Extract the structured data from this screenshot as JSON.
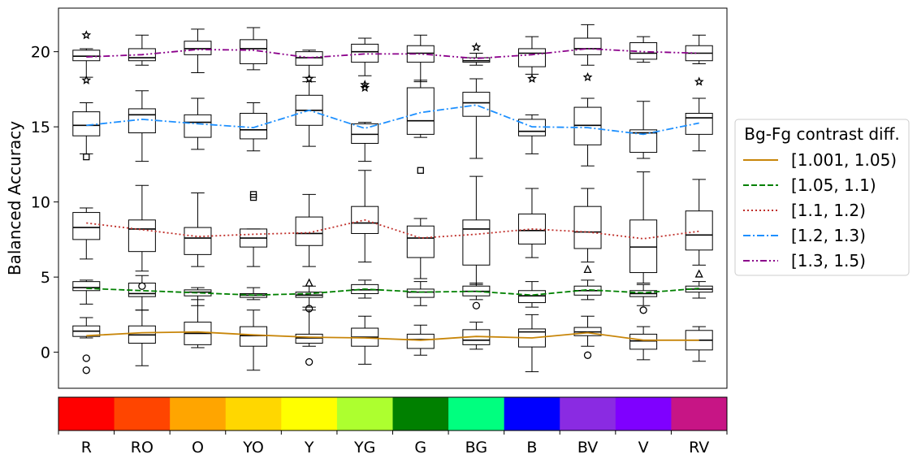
{
  "chart_data": {
    "type": "box",
    "ylabel": "Balanced Accuracy",
    "xlabel": "",
    "ylim": [
      -2.4,
      22.9
    ],
    "yticks": [
      0,
      5,
      10,
      15,
      20
    ],
    "grid": false,
    "categories": [
      "R",
      "RO",
      "O",
      "YO",
      "Y",
      "YG",
      "G",
      "BG",
      "B",
      "BV",
      "V",
      "RV"
    ],
    "category_colors": [
      "#ff0000",
      "#ff4500",
      "#ffa500",
      "#ffd700",
      "#ffff00",
      "#adff2f",
      "#008000",
      "#00ff7f",
      "#0000ff",
      "#8a2be2",
      "#7f00ff",
      "#c71585"
    ],
    "legend": {
      "title": "Bg-Fg contrast diff.",
      "placement": "outside-right"
    },
    "series": [
      {
        "name": "[1.001, 1.05)",
        "color": "#c8860a",
        "dash": "solid",
        "marker": "circle",
        "mean_line": [
          1.1,
          1.3,
          1.35,
          1.15,
          1.0,
          0.95,
          0.8,
          1.05,
          0.95,
          1.3,
          0.8,
          0.8
        ],
        "boxes": [
          {
            "whislo": 0.95,
            "q1": 1.05,
            "med": 1.4,
            "q3": 1.75,
            "whishi": 2.3,
            "fliers": [
              -0.4,
              -1.2
            ]
          },
          {
            "whislo": -0.9,
            "q1": 0.6,
            "med": 1.15,
            "q3": 1.75,
            "whishi": 2.8,
            "fliers": []
          },
          {
            "whislo": 0.3,
            "q1": 0.5,
            "med": 1.25,
            "q3": 2.0,
            "whishi": 3.5,
            "fliers": []
          },
          {
            "whislo": -1.2,
            "q1": 0.4,
            "med": 1.1,
            "q3": 1.7,
            "whishi": 2.8,
            "fliers": []
          },
          {
            "whislo": 0.4,
            "q1": 0.6,
            "med": 0.95,
            "q3": 1.2,
            "whishi": 2.8,
            "fliers": [
              -0.65
            ]
          },
          {
            "whislo": -0.8,
            "q1": 0.4,
            "med": 1.0,
            "q3": 1.6,
            "whishi": 2.4,
            "fliers": []
          },
          {
            "whislo": -0.2,
            "q1": 0.25,
            "med": 0.85,
            "q3": 1.2,
            "whishi": 1.8,
            "fliers": []
          },
          {
            "whislo": 0.2,
            "q1": 0.5,
            "med": 0.8,
            "q3": 1.5,
            "whishi": 2.0,
            "fliers": []
          },
          {
            "whislo": -1.3,
            "q1": 0.35,
            "med": 1.35,
            "q3": 1.55,
            "whishi": 2.5,
            "fliers": []
          },
          {
            "whislo": 0.4,
            "q1": 1.1,
            "med": 1.35,
            "q3": 1.65,
            "whishi": 2.4,
            "fliers": [
              -0.2
            ]
          },
          {
            "whislo": -0.5,
            "q1": 0.2,
            "med": 0.75,
            "q3": 1.2,
            "whishi": 1.7,
            "fliers": []
          },
          {
            "whislo": -0.6,
            "q1": 0.15,
            "med": 0.8,
            "q3": 1.45,
            "whishi": 1.7,
            "fliers": []
          }
        ]
      },
      {
        "name": "[1.05, 1.1)",
        "color": "#008000",
        "dash": "dashed",
        "marker": "circle",
        "mean_line": [
          4.25,
          4.1,
          3.95,
          3.8,
          3.9,
          4.2,
          4.0,
          4.05,
          3.8,
          4.15,
          3.95,
          4.25
        ],
        "boxes": [
          {
            "whislo": 3.2,
            "q1": 4.1,
            "med": 4.3,
            "q3": 4.7,
            "whishi": 4.8,
            "fliers": []
          },
          {
            "whislo": 2.8,
            "q1": 3.7,
            "med": 3.9,
            "q3": 4.6,
            "whishi": 5.1,
            "fliers": [
              4.4
            ]
          },
          {
            "whislo": 3.1,
            "q1": 3.75,
            "med": 4.0,
            "q3": 4.15,
            "whishi": 4.3,
            "fliers": []
          },
          {
            "whislo": 3.5,
            "q1": 3.65,
            "med": 3.8,
            "q3": 3.9,
            "whishi": 4.3,
            "fliers": []
          },
          {
            "whislo": 3.0,
            "q1": 3.65,
            "med": 3.8,
            "q3": 4.0,
            "whishi": 4.4,
            "fliers": [
              2.9
            ]
          },
          {
            "whislo": 3.6,
            "q1": 3.9,
            "med": 4.15,
            "q3": 4.5,
            "whishi": 4.8,
            "fliers": []
          },
          {
            "whislo": 3.1,
            "q1": 3.65,
            "med": 4.0,
            "q3": 4.2,
            "whishi": 4.7,
            "fliers": []
          },
          {
            "whislo": 3.5,
            "q1": 3.75,
            "med": 4.05,
            "q3": 4.4,
            "whishi": 4.6,
            "fliers": [
              3.1
            ]
          },
          {
            "whislo": 3.0,
            "q1": 3.3,
            "med": 3.75,
            "q3": 4.1,
            "whishi": 4.7,
            "fliers": []
          },
          {
            "whislo": 3.5,
            "q1": 3.8,
            "med": 4.1,
            "q3": 4.4,
            "whishi": 4.8,
            "fliers": []
          },
          {
            "whislo": 3.1,
            "q1": 3.7,
            "med": 3.9,
            "q3": 4.1,
            "whishi": 4.5,
            "fliers": [
              2.8
            ]
          },
          {
            "whislo": 3.6,
            "q1": 4.0,
            "med": 4.2,
            "q3": 4.4,
            "whishi": 4.7,
            "fliers": []
          }
        ]
      },
      {
        "name": "[1.1, 1.2)",
        "color": "#c0302b",
        "dash": "dotted",
        "marker": "triangle",
        "mean_line": [
          8.6,
          8.15,
          7.7,
          7.85,
          7.95,
          8.8,
          7.6,
          7.85,
          8.2,
          8.0,
          7.55,
          8.05
        ],
        "boxes": [
          {
            "whislo": 6.2,
            "q1": 7.5,
            "med": 8.3,
            "q3": 9.3,
            "whishi": 9.6,
            "fliers": []
          },
          {
            "whislo": 5.4,
            "q1": 6.7,
            "med": 8.2,
            "q3": 8.8,
            "whishi": 11.1,
            "fliers": []
          },
          {
            "whislo": 5.7,
            "q1": 6.5,
            "med": 7.6,
            "q3": 8.3,
            "whishi": 10.6,
            "fliers": []
          },
          {
            "whislo": 5.7,
            "q1": 7.0,
            "med": 7.6,
            "q3": 8.2,
            "whishi": 8.2,
            "fliers": []
          },
          {
            "whislo": 5.7,
            "q1": 7.1,
            "med": 7.9,
            "q3": 9.0,
            "whishi": 10.5,
            "fliers": [
              4.6
            ]
          },
          {
            "whislo": 6.0,
            "q1": 7.9,
            "med": 8.6,
            "q3": 9.7,
            "whishi": 12.1,
            "fliers": []
          },
          {
            "whislo": 4.9,
            "q1": 6.3,
            "med": 7.6,
            "q3": 8.4,
            "whishi": 8.9,
            "fliers": []
          },
          {
            "whislo": 4.5,
            "q1": 5.8,
            "med": 8.2,
            "q3": 8.8,
            "whishi": 11.7,
            "fliers": []
          },
          {
            "whislo": 6.3,
            "q1": 7.2,
            "med": 8.1,
            "q3": 9.2,
            "whishi": 10.9,
            "fliers": []
          },
          {
            "whislo": 6.0,
            "q1": 6.9,
            "med": 8.0,
            "q3": 9.7,
            "whishi": 10.9,
            "fliers": [
              5.5
            ]
          },
          {
            "whislo": 4.6,
            "q1": 5.3,
            "med": 7.0,
            "q3": 8.8,
            "whishi": 12.0,
            "fliers": []
          },
          {
            "whislo": 5.8,
            "q1": 6.8,
            "med": 7.8,
            "q3": 9.4,
            "whishi": 11.5,
            "fliers": [
              5.2
            ]
          }
        ]
      },
      {
        "name": "[1.2, 1.3)",
        "color": "#1e90ff",
        "dash": "dashdot",
        "marker": "square",
        "mean_line": [
          15.1,
          15.5,
          15.2,
          14.95,
          16.1,
          14.9,
          15.95,
          16.45,
          15.0,
          14.95,
          14.5,
          15.25
        ],
        "boxes": [
          {
            "whislo": 13.2,
            "q1": 14.4,
            "med": 15.1,
            "q3": 16.0,
            "whishi": 16.6,
            "fliers": [
              13.0
            ]
          },
          {
            "whislo": 12.7,
            "q1": 14.6,
            "med": 15.8,
            "q3": 16.2,
            "whishi": 17.4,
            "fliers": []
          },
          {
            "whislo": 13.5,
            "q1": 14.3,
            "med": 15.3,
            "q3": 15.8,
            "whishi": 16.9,
            "fliers": []
          },
          {
            "whislo": 13.4,
            "q1": 14.2,
            "med": 14.8,
            "q3": 15.9,
            "whishi": 16.6,
            "fliers": [
              10.3,
              10.5
            ]
          },
          {
            "whislo": 13.7,
            "q1": 15.1,
            "med": 16.1,
            "q3": 17.1,
            "whishi": 18.0,
            "fliers": []
          },
          {
            "whislo": 12.7,
            "q1": 13.9,
            "med": 14.5,
            "q3": 15.2,
            "whishi": 15.3,
            "fliers": []
          },
          {
            "whislo": 14.3,
            "q1": 14.5,
            "med": 15.4,
            "q3": 17.6,
            "whishi": 18.1,
            "fliers": [
              12.1
            ]
          },
          {
            "whislo": 12.9,
            "q1": 15.7,
            "med": 16.6,
            "q3": 17.3,
            "whishi": 18.2,
            "fliers": []
          },
          {
            "whislo": 13.2,
            "q1": 14.4,
            "med": 14.7,
            "q3": 15.5,
            "whishi": 15.8,
            "fliers": []
          },
          {
            "whislo": 12.4,
            "q1": 13.8,
            "med": 15.1,
            "q3": 16.3,
            "whishi": 16.9,
            "fliers": []
          },
          {
            "whislo": 12.9,
            "q1": 13.3,
            "med": 14.6,
            "q3": 14.8,
            "whishi": 16.7,
            "fliers": []
          },
          {
            "whislo": 13.4,
            "q1": 14.5,
            "med": 15.6,
            "q3": 15.9,
            "whishi": 16.9,
            "fliers": []
          }
        ]
      },
      {
        "name": "[1.3, 1.5)",
        "color": "#8b008b",
        "dash": "dashdotdot",
        "marker": "star",
        "mean_line": [
          19.65,
          19.8,
          20.15,
          20.1,
          19.6,
          19.85,
          19.85,
          19.55,
          19.8,
          20.2,
          20.0,
          19.9
        ],
        "boxes": [
          {
            "whislo": 18.3,
            "q1": 19.4,
            "med": 19.7,
            "q3": 20.1,
            "whishi": 20.2,
            "fliers": [
              21.1,
              18.1
            ]
          },
          {
            "whislo": 19.1,
            "q1": 19.4,
            "med": 19.6,
            "q3": 20.2,
            "whishi": 21.1,
            "fliers": []
          },
          {
            "whislo": 18.6,
            "q1": 19.8,
            "med": 20.2,
            "q3": 20.7,
            "whishi": 21.5,
            "fliers": []
          },
          {
            "whislo": 18.8,
            "q1": 19.2,
            "med": 20.2,
            "q3": 20.8,
            "whishi": 21.6,
            "fliers": []
          },
          {
            "whislo": 18.3,
            "q1": 19.1,
            "med": 19.6,
            "q3": 20.0,
            "whishi": 20.1,
            "fliers": [
              18.2
            ]
          },
          {
            "whislo": 18.4,
            "q1": 19.3,
            "med": 20.0,
            "q3": 20.5,
            "whishi": 20.9,
            "fliers": [
              17.8,
              17.6
            ]
          },
          {
            "whislo": 18.0,
            "q1": 19.3,
            "med": 19.9,
            "q3": 20.4,
            "whishi": 21.1,
            "fliers": []
          },
          {
            "whislo": 19.1,
            "q1": 19.3,
            "med": 19.4,
            "q3": 19.6,
            "whishi": 19.9,
            "fliers": [
              20.3
            ]
          },
          {
            "whislo": 18.5,
            "q1": 19.0,
            "med": 19.9,
            "q3": 20.2,
            "whishi": 21.0,
            "fliers": [
              18.2
            ]
          },
          {
            "whislo": 19.1,
            "q1": 19.8,
            "med": 20.2,
            "q3": 20.9,
            "whishi": 21.8,
            "fliers": [
              18.3
            ]
          },
          {
            "whislo": 19.3,
            "q1": 19.5,
            "med": 19.9,
            "q3": 20.6,
            "whishi": 21.0,
            "fliers": []
          },
          {
            "whislo": 19.2,
            "q1": 19.4,
            "med": 19.9,
            "q3": 20.4,
            "whishi": 21.1,
            "fliers": [
              18.0
            ]
          }
        ]
      }
    ]
  }
}
